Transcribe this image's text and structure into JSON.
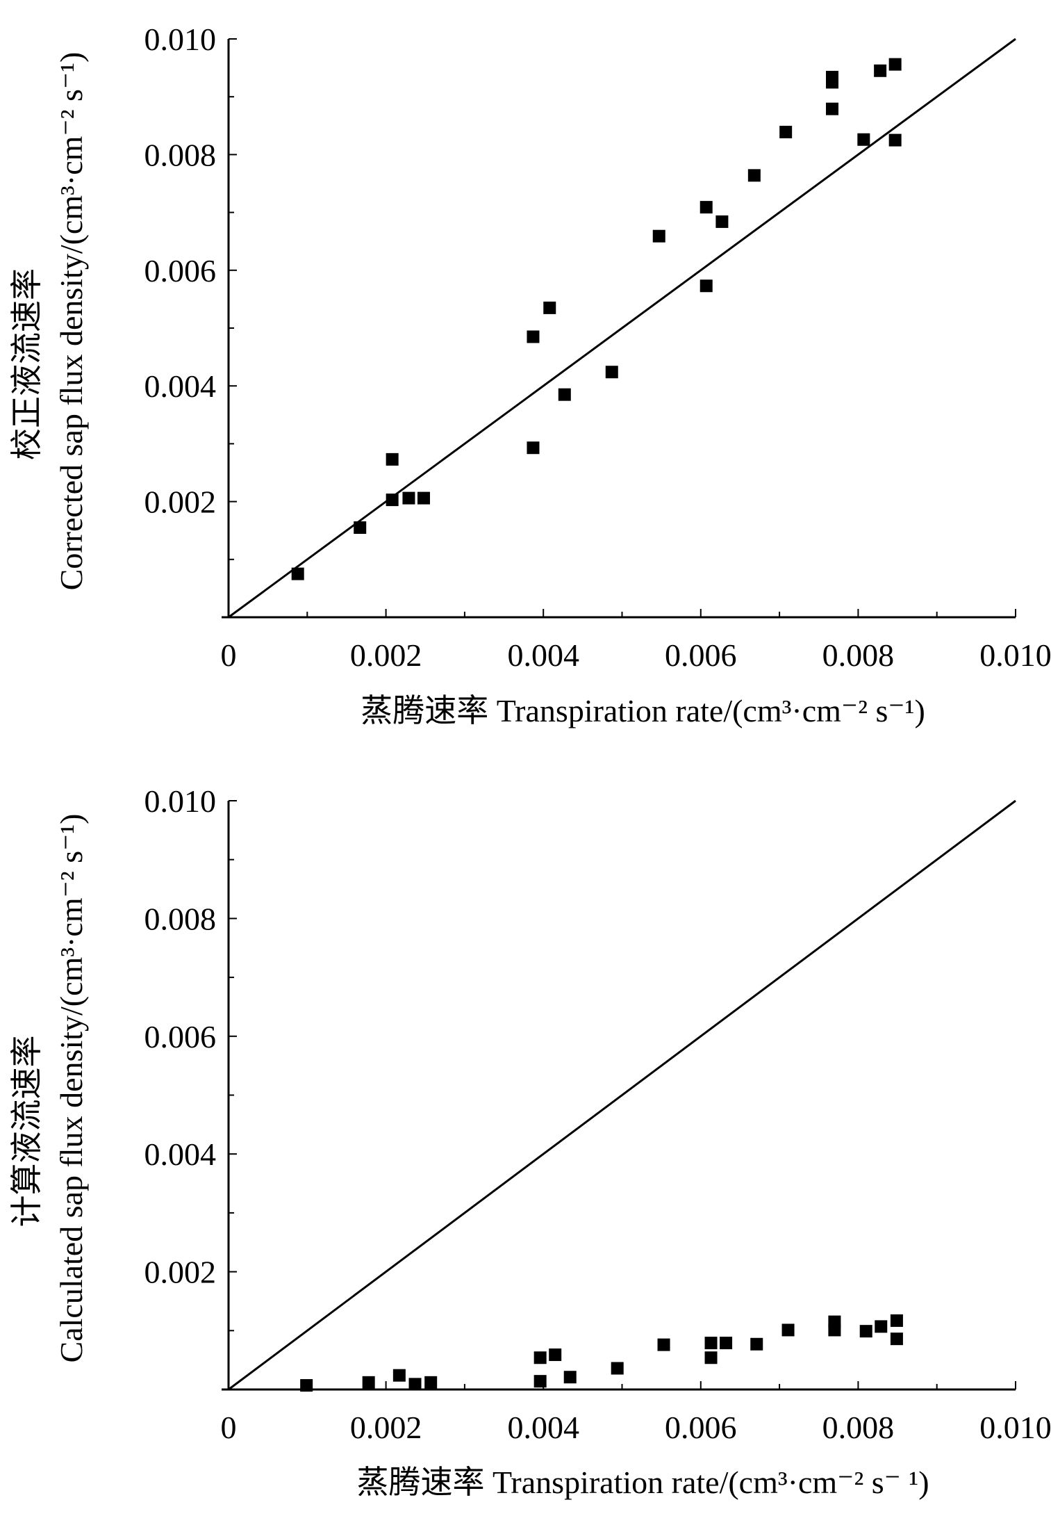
{
  "chart_data": [
    {
      "type": "scatter",
      "title": "",
      "xlabel": "蒸腾速率 Transpiration rate/(cm³·cm⁻² s⁻¹)",
      "ylabel_cn": "校正液流速率",
      "ylabel_en": "Corrected sap flux density/(cm³·cm⁻² s⁻¹)",
      "xlim": [
        0,
        0.01
      ],
      "ylim": [
        0,
        0.01
      ],
      "xticks": [
        "0",
        "0.002",
        "0.004",
        "0.006",
        "0.008",
        "0.010"
      ],
      "yticks": [
        "0.002",
        "0.004",
        "0.006",
        "0.008",
        "0.010"
      ],
      "grid": false,
      "reference_line": {
        "name": "1:1 line",
        "from": [
          0,
          0
        ],
        "to": [
          0.01,
          0.01
        ]
      },
      "series": [
        {
          "name": "Corrected",
          "marker": "square",
          "x": [
            0.00088,
            0.00167,
            0.00208,
            0.00208,
            0.00229,
            0.00248,
            0.00387,
            0.00408,
            0.00387,
            0.00427,
            0.00487,
            0.00547,
            0.00607,
            0.00607,
            0.00627,
            0.00668,
            0.00708,
            0.00767,
            0.00767,
            0.00767,
            0.00807,
            0.00828,
            0.00847,
            0.00847
          ],
          "y": [
            0.00075,
            0.00155,
            0.00273,
            0.00203,
            0.00206,
            0.00206,
            0.00485,
            0.00535,
            0.00293,
            0.00385,
            0.00424,
            0.00659,
            0.00573,
            0.00709,
            0.00684,
            0.00764,
            0.00839,
            0.00879,
            0.00925,
            0.00934,
            0.00826,
            0.00945,
            0.00825,
            0.00956
          ]
        }
      ]
    },
    {
      "type": "scatter",
      "title": "",
      "xlabel": "蒸腾速率 Transpiration rate/(cm³·cm⁻² s⁻ ¹)",
      "ylabel_cn": "计算液流速率",
      "ylabel_en": "Calculated sap flux density/(cm³·cm⁻² s⁻¹)",
      "xlim": [
        0,
        0.01
      ],
      "ylim": [
        0,
        0.01
      ],
      "xticks": [
        "0",
        "0.002",
        "0.004",
        "0.006",
        "0.008",
        "0.010"
      ],
      "yticks": [
        "0.002",
        "0.004",
        "0.006",
        "0.008",
        "0.010"
      ],
      "grid": false,
      "reference_line": {
        "name": "1:1 line",
        "from": [
          0,
          0
        ],
        "to": [
          0.01,
          0.01
        ]
      },
      "series": [
        {
          "name": "Calculated",
          "marker": "square",
          "x": [
            0.00099,
            0.00178,
            0.00217,
            0.00237,
            0.00257,
            0.00396,
            0.00396,
            0.00415,
            0.00434,
            0.00494,
            0.00553,
            0.00613,
            0.00613,
            0.00632,
            0.00671,
            0.00711,
            0.0077,
            0.0077,
            0.0081,
            0.00829,
            0.00849,
            0.00849
          ],
          "y": [
            7e-05,
            0.00012,
            0.00024,
            9e-05,
            0.00012,
            0.00054,
            0.00014,
            0.00059,
            0.00021,
            0.00036,
            0.00076,
            0.00079,
            0.00054,
            0.00079,
            0.00077,
            0.00101,
            0.00115,
            0.00101,
            0.00099,
            0.00107,
            0.00117,
            0.00086
          ]
        }
      ]
    }
  ]
}
